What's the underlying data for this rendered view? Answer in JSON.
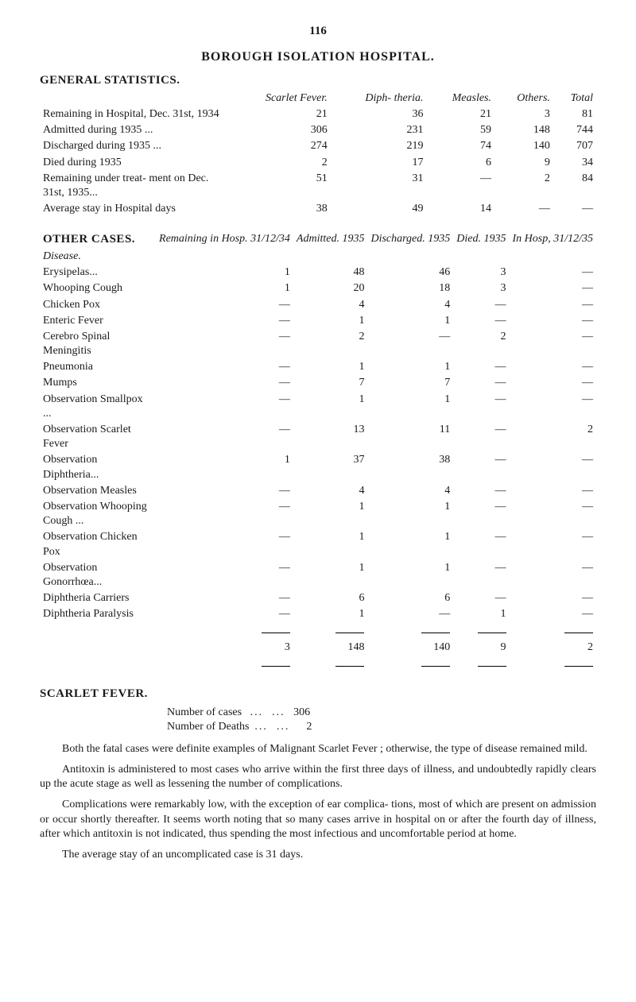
{
  "page_number": "116",
  "main_title": "BOROUGH ISOLATION HOSPITAL.",
  "general": {
    "heading": "GENERAL STATISTICS.",
    "col_headers": {
      "c1": "Scarlet Fever.",
      "c2": "Diph- theria.",
      "c3": "Measles.",
      "c4": "Others.",
      "c5": "Total"
    },
    "rows": [
      {
        "label": "Remaining in Hospital, Dec. 31st, 1934",
        "c1": "21",
        "c2": "36",
        "c3": "21",
        "c4": "3",
        "c5": "81"
      },
      {
        "label": "Admitted during 1935 ...",
        "c1": "306",
        "c2": "231",
        "c3": "59",
        "c4": "148",
        "c5": "744"
      },
      {
        "label": "Discharged during 1935 ...",
        "c1": "274",
        "c2": "219",
        "c3": "74",
        "c4": "140",
        "c5": "707"
      },
      {
        "label": "Died during 1935",
        "c1": "2",
        "c2": "17",
        "c3": "6",
        "c4": "9",
        "c5": "34"
      },
      {
        "label": "Remaining under treat- ment on Dec. 31st, 1935...",
        "c1": "51",
        "c2": "31",
        "c3": "—",
        "c4": "2",
        "c5": "84"
      },
      {
        "label": "Average stay in Hospital days",
        "c1": "38",
        "c2": "49",
        "c3": "14",
        "c4": "—",
        "c5": "—"
      }
    ]
  },
  "other": {
    "heading": "OTHER CASES.",
    "col_headers": {
      "c1": "Remaining in Hosp. 31/12/34",
      "c2": "Admitted. 1935",
      "c3": "Discharged. 1935",
      "c4": "Died. 1935",
      "c5": "In Hosp, 31/12/35"
    },
    "disease_label": "Disease.",
    "rows": [
      {
        "label": "Erysipelas...",
        "c1": "1",
        "c2": "48",
        "c3": "46",
        "c4": "3",
        "c5": "—"
      },
      {
        "label": "Whooping Cough",
        "c1": "1",
        "c2": "20",
        "c3": "18",
        "c4": "3",
        "c5": "—"
      },
      {
        "label": "Chicken Pox",
        "c1": "—",
        "c2": "4",
        "c3": "4",
        "c4": "—",
        "c5": "—"
      },
      {
        "label": "Enteric Fever",
        "c1": "—",
        "c2": "1",
        "c3": "1",
        "c4": "—",
        "c5": "—"
      },
      {
        "label": "Cerebro Spinal Meningitis",
        "c1": "—",
        "c2": "2",
        "c3": "—",
        "c4": "2",
        "c5": "—"
      },
      {
        "label": "Pneumonia",
        "c1": "—",
        "c2": "1",
        "c3": "1",
        "c4": "—",
        "c5": "—"
      },
      {
        "label": "Mumps",
        "c1": "—",
        "c2": "7",
        "c3": "7",
        "c4": "—",
        "c5": "—"
      },
      {
        "label": "Observation Smallpox ...",
        "c1": "—",
        "c2": "1",
        "c3": "1",
        "c4": "—",
        "c5": "—"
      },
      {
        "label": "Observation Scarlet Fever",
        "c1": "—",
        "c2": "13",
        "c3": "11",
        "c4": "—",
        "c5": "2"
      },
      {
        "label": "Observation Diphtheria...",
        "c1": "1",
        "c2": "37",
        "c3": "38",
        "c4": "—",
        "c5": "—"
      },
      {
        "label": "Observation Measles",
        "c1": "—",
        "c2": "4",
        "c3": "4",
        "c4": "—",
        "c5": "—"
      },
      {
        "label": "Observation Whooping Cough ...",
        "c1": "—",
        "c2": "1",
        "c3": "1",
        "c4": "—",
        "c5": "—"
      },
      {
        "label": "Observation Chicken Pox",
        "c1": "—",
        "c2": "1",
        "c3": "1",
        "c4": "—",
        "c5": "—"
      },
      {
        "label": "Observation Gonorrhœa...",
        "c1": "—",
        "c2": "1",
        "c3": "1",
        "c4": "—",
        "c5": "—"
      },
      {
        "label": "Diphtheria Carriers",
        "c1": "—",
        "c2": "6",
        "c3": "6",
        "c4": "—",
        "c5": "—"
      },
      {
        "label": "Diphtheria Paralysis",
        "c1": "—",
        "c2": "1",
        "c3": "—",
        "c4": "1",
        "c5": "—"
      }
    ],
    "totals": {
      "c1": "3",
      "c2": "148",
      "c3": "140",
      "c4": "9",
      "c5": "2"
    }
  },
  "scarlet": {
    "heading": "SCARLET FEVER.",
    "line1_label": "Number of cases",
    "line1_val": "306",
    "line2_label": "Number of Deaths",
    "line2_val": "2",
    "p1": "Both the fatal cases were definite examples of Malignant Scarlet Fever ; otherwise, the type of disease remained mild.",
    "p2": "Antitoxin is administered to most cases who arrive within the first three days of illness, and undoubtedly rapidly clears up the acute stage as well as lessening the number of complications.",
    "p3": "Complications were remarkably low, with the exception of ear complica- tions, most of which are present on admission or occur shortly thereafter. It seems worth noting that so many cases arrive in hospital on or after the fourth day of illness, after which antitoxin is not indicated, thus spending the most infectious and uncomfortable period at home.",
    "p4": "The average stay of an uncomplicated case is 31 days."
  }
}
